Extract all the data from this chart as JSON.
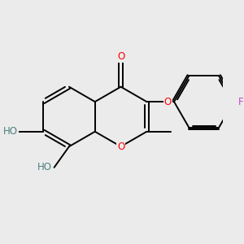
{
  "bg_color": "#ebebeb",
  "bond_color": "#000000",
  "atom_colors": {
    "O": "#ff0000",
    "F": "#cc44cc",
    "HO": "#4d8080"
  },
  "figsize": [
    3.0,
    3.0
  ],
  "dpi": 100,
  "bond_lw": 1.4,
  "font_size": 8.5
}
